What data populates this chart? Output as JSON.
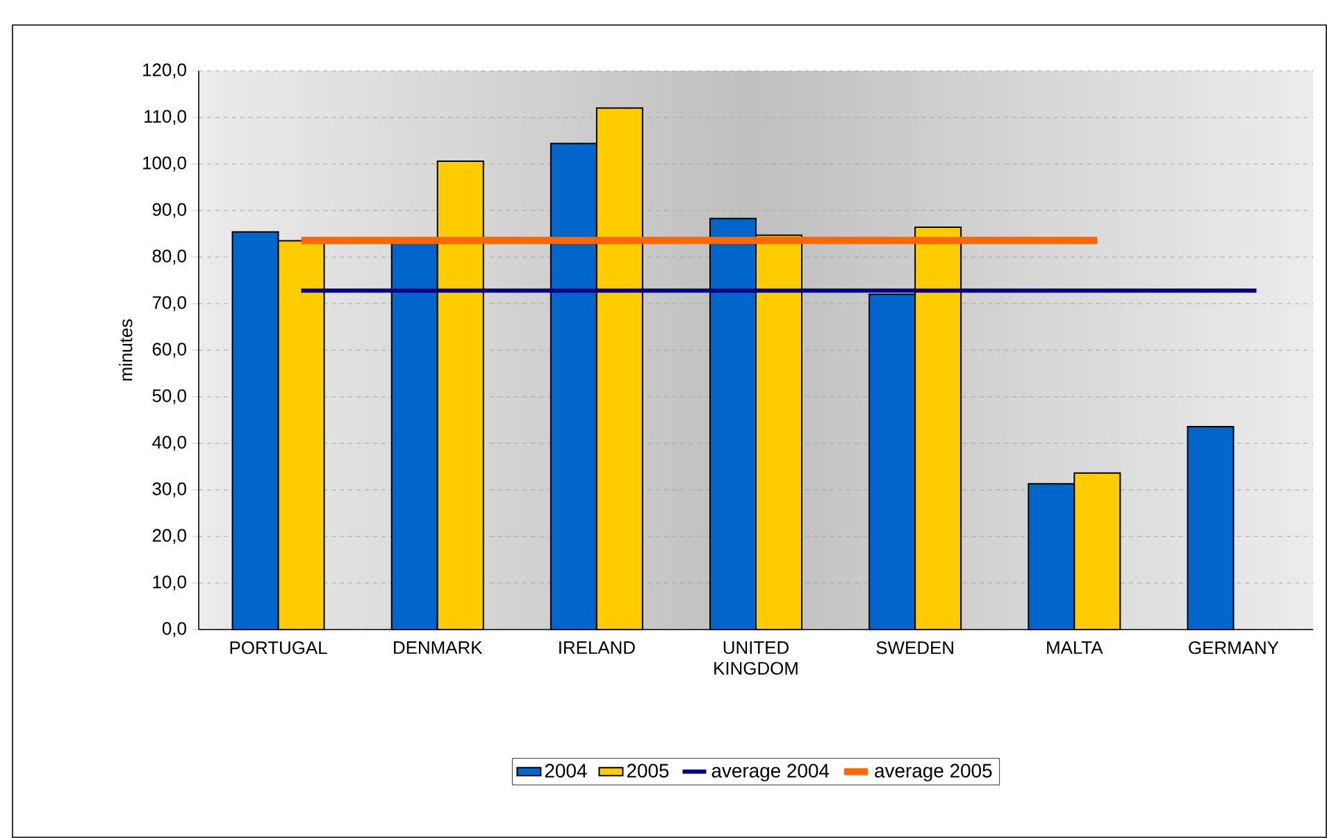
{
  "chart_data": {
    "type": "bar",
    "ylabel": "minutes",
    "categories": [
      "PORTUGAL",
      "DENMARK",
      "IRELAND",
      "UNITED KINGDOM",
      "SWEDEN",
      "MALTA",
      "GERMANY"
    ],
    "series": [
      {
        "name": "2004",
        "color": "#0066cc",
        "values": [
          85.4,
          83.0,
          104.4,
          88.3,
          72.0,
          31.3,
          43.6
        ]
      },
      {
        "name": "2005",
        "color": "#ffcc00",
        "values": [
          83.5,
          100.6,
          112.0,
          84.7,
          86.4,
          33.6,
          null
        ]
      },
      {
        "name": "average 2004",
        "type": "line",
        "color": "#000080",
        "values": [
          72.8,
          72.8,
          72.8,
          72.8,
          72.8,
          72.8,
          72.8
        ]
      },
      {
        "name": "average 2005",
        "type": "line",
        "color": "#ff6600",
        "values": [
          83.6,
          83.6,
          83.6,
          83.6,
          83.6,
          83.6,
          null
        ]
      }
    ],
    "ylim": [
      0,
      120
    ],
    "yticks": [
      {
        "value": 0,
        "label": "0,0"
      },
      {
        "value": 10,
        "label": "10,0"
      },
      {
        "value": 20,
        "label": "20,0"
      },
      {
        "value": 30,
        "label": "30,0"
      },
      {
        "value": 40,
        "label": "40,0"
      },
      {
        "value": 50,
        "label": "50,0"
      },
      {
        "value": 60,
        "label": "60,0"
      },
      {
        "value": 70,
        "label": "70,0"
      },
      {
        "value": 80,
        "label": "80,0"
      },
      {
        "value": 90,
        "label": "90,0"
      },
      {
        "value": 100,
        "label": "100,0"
      },
      {
        "value": 110,
        "label": "110,0"
      },
      {
        "value": 120,
        "label": "120,0"
      }
    ],
    "grid": "y",
    "legend": "bottom"
  }
}
